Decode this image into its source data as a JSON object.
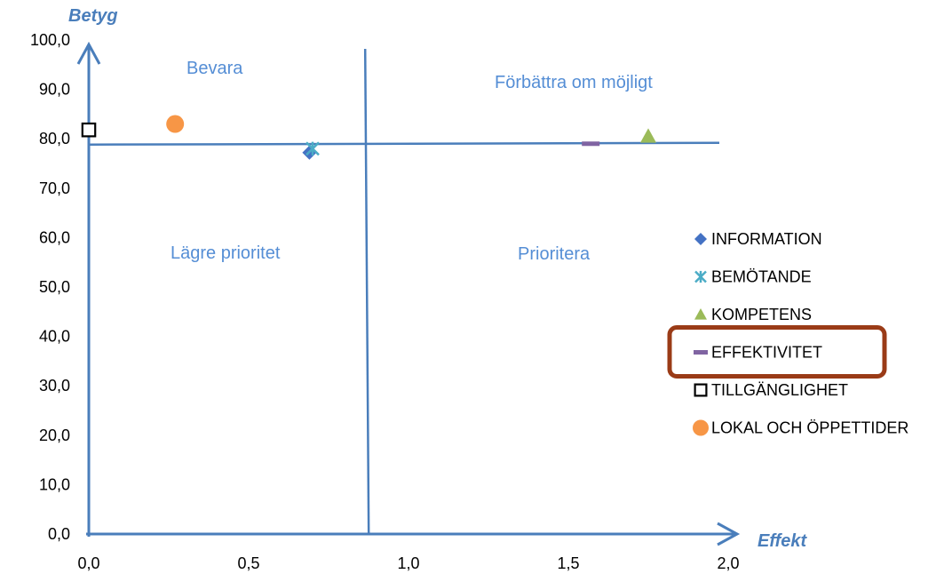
{
  "chart_data": {
    "type": "scatter",
    "xlabel": "Effekt",
    "ylabel": "Betyg",
    "xlim": [
      0,
      2.0
    ],
    "ylim": [
      0,
      100
    ],
    "x_ticks": [
      "0,0",
      "0,5",
      "1,0",
      "1,5",
      "2,0"
    ],
    "y_ticks": [
      "0,0",
      "10,0",
      "20,0",
      "30,0",
      "40,0",
      "50,0",
      "60,0",
      "70,0",
      "80,0",
      "90,0",
      "100,0"
    ],
    "quadrant_lines": {
      "x": 0.87,
      "y": 79
    },
    "quadrant_labels": {
      "top_left": "Bevara",
      "top_right": "Förbättra om möjligt",
      "bottom_left": "Lägre prioritet",
      "bottom_right": "Prioritera"
    },
    "series": [
      {
        "name": "INFORMATION",
        "marker": "diamond",
        "color": "#4472C4",
        "x": 0.69,
        "y": 77.2
      },
      {
        "name": "BEMÖTANDE",
        "marker": "asterisk",
        "color": "#4BACC6",
        "x": 0.7,
        "y": 78.0
      },
      {
        "name": "KOMPETENS",
        "marker": "triangle",
        "color": "#9BBB59",
        "x": 1.75,
        "y": 80.5
      },
      {
        "name": "EFFEKTIVITET",
        "marker": "dash",
        "color": "#8064A2",
        "x": 1.57,
        "y": 79.0
      },
      {
        "name": "TILLGÄNGLIGHET",
        "marker": "square-open",
        "color": "#000000",
        "x": 0.0,
        "y": 81.8
      },
      {
        "name": "LOKAL OCH ÖPPETTIDER",
        "marker": "circle",
        "color": "#F79646",
        "x": 0.27,
        "y": 83.0
      }
    ],
    "highlighted_legend_entry": "EFFEKTIVITET",
    "colors": {
      "axis": "#4A7EBB",
      "quad_text": "#558ED5",
      "highlight_box": "#9A3B17"
    },
    "legend_position": "right"
  }
}
